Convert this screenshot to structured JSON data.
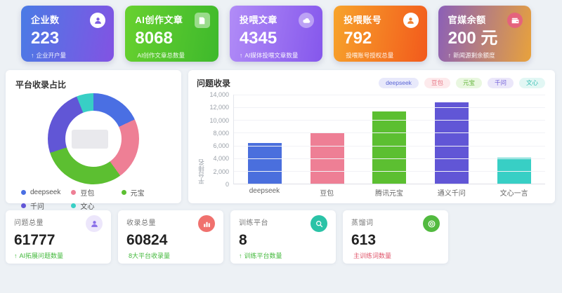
{
  "page": {
    "background": "#edf1f5"
  },
  "top_cards": [
    {
      "title": "企业数",
      "value": "223",
      "arrow": "↑",
      "subtitle": "企业开户量",
      "icon": "user-icon",
      "gradient": [
        "#4a7be5",
        "#8253e3"
      ],
      "icon_bg": "#ffffff",
      "icon_color": "#7c5ce0"
    },
    {
      "title": "AI创作文章",
      "value": "8068",
      "arrow": "",
      "subtitle": "AI创作文章总数量",
      "icon": "document-icon",
      "gradient": [
        "#68d12f",
        "#3eb92c"
      ],
      "icon_bg": "rgba(255,255,255,0.45)",
      "icon_color": "#ffffff"
    },
    {
      "title": "投喂文章",
      "value": "4345",
      "arrow": "↑",
      "subtitle": "AI媒体投喂文章数量",
      "icon": "cloud-icon",
      "gradient": [
        "#b18cf7",
        "#8557ec"
      ],
      "icon_bg": "rgba(255,255,255,0.40)",
      "icon_color": "#ffffff"
    },
    {
      "title": "投喂账号",
      "value": "792",
      "arrow": "",
      "subtitle": "投喂账号授权总量",
      "icon": "user-icon",
      "gradient": [
        "#f7a32b",
        "#f25a1c"
      ],
      "icon_bg": "#ffffff",
      "icon_color": "#f08030"
    },
    {
      "title": "官媒余额",
      "value": "200 元",
      "arrow": "↑",
      "subtitle": "新闻源剩余额度",
      "icon": "wallet-icon",
      "gradient": [
        "#8b5fb8",
        "#e8a23c"
      ],
      "icon_bg": "rgba(232,90,130,0.85)",
      "icon_color": "#ffffff"
    }
  ],
  "donut_panel": {
    "title": "平台收录占比"
  },
  "bar_panel": {
    "title": "问题收录",
    "ylabel": "平台排名"
  },
  "chart_data": [
    {
      "type": "pie",
      "title": "平台收录占比",
      "labels": [
        "deepseek",
        "豆包",
        "元宝",
        "千问",
        "文心"
      ],
      "values": [
        18,
        22,
        30,
        24,
        6
      ],
      "unit": "percent (estimated from arc angles)",
      "colors": [
        "#4a6fe3",
        "#ee7f95",
        "#5cbf31",
        "#6156d6",
        "#38cfc5"
      ],
      "donut": true,
      "legend_position": "bottom"
    },
    {
      "type": "bar",
      "title": "问题收录",
      "categories": [
        "deepseek",
        "豆包",
        "腾讯元宝",
        "通义千问",
        "文心一言"
      ],
      "values": [
        6400,
        7900,
        11400,
        12800,
        4100
      ],
      "colors": [
        "#4a6fdd",
        "#ee7f95",
        "#5cbf31",
        "#6156d6",
        "#38cfc5"
      ],
      "xlabel": "",
      "ylabel": "平台排名",
      "ylim": [
        0,
        14000
      ],
      "yticks": [
        "14,000",
        "12,000",
        "10,000",
        "8,000",
        "6,000",
        "4,000",
        "2,000",
        "0"
      ],
      "grid": true,
      "legend_position": "top-right",
      "legend": [
        {
          "label": "deepseek",
          "bg": "#e8e9fb",
          "color": "#5b66d6"
        },
        {
          "label": "豆包",
          "bg": "#fdeaec",
          "color": "#e77a88"
        },
        {
          "label": "元宝",
          "bg": "#e9f7e0",
          "color": "#62b53a"
        },
        {
          "label": "千问",
          "bg": "#ebe7fa",
          "color": "#6e5bd8"
        },
        {
          "label": "文心",
          "bg": "#e2f7f4",
          "color": "#33bdb2"
        }
      ]
    }
  ],
  "bottom_cards": [
    {
      "title": "问题总量",
      "value": "61777",
      "arrow": "↑",
      "subtitle": "AI拓展问题数量",
      "subtitle_color": "#43b93c",
      "icon": "user-icon",
      "icon_bg": "#ece6fb",
      "icon_color": "#8a6ee8"
    },
    {
      "title": "收录总量",
      "value": "60824",
      "arrow": "",
      "subtitle": "8大平台收录量",
      "subtitle_color": "#43b93c",
      "icon": "bar-chart-icon",
      "icon_bg": "#f0716e",
      "icon_color": "#ffffff"
    },
    {
      "title": "训练平台",
      "value": "8",
      "arrow": "↑",
      "subtitle": "训练平台数量",
      "subtitle_color": "#43b93c",
      "icon": "search-icon",
      "icon_bg": "#2bc3a7",
      "icon_color": "#ffffff"
    },
    {
      "title": "蒸馏词",
      "value": "613",
      "arrow": "",
      "subtitle": "主训练词数量",
      "subtitle_color": "#e0566b",
      "icon": "target-icon",
      "icon_bg": "#52ba3f",
      "icon_color": "#ffffff"
    }
  ]
}
